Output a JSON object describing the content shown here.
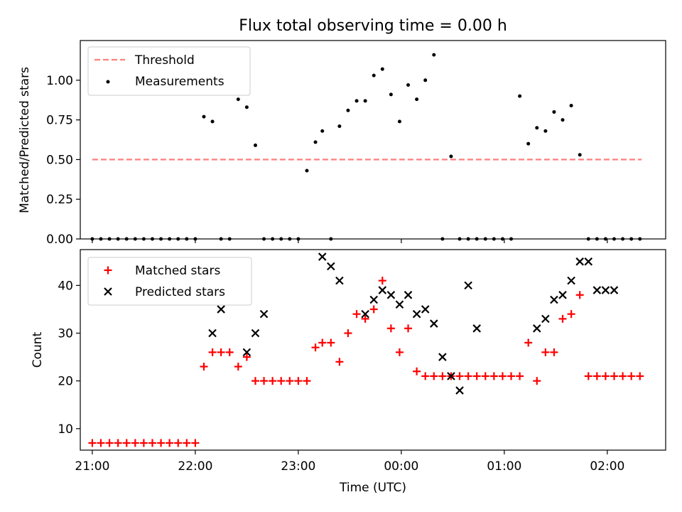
{
  "chart_data": [
    {
      "type": "scatter",
      "title": "Flux total observing time = 0.00 h",
      "xlabel": "",
      "ylabel": "Matched/Predicted stars",
      "xlim": [
        "20:53",
        "02:34"
      ],
      "ylim": [
        0.0,
        1.25
      ],
      "yticks": [
        "0.00",
        "0.25",
        "0.50",
        "0.75",
        "1.00"
      ],
      "xticks": [
        "21:00",
        "22:00",
        "23:00",
        "00:00",
        "01:00",
        "02:00"
      ],
      "legend_position": "top-left",
      "legend": [
        "Threshold",
        "Measurements"
      ],
      "threshold": {
        "value": 0.5,
        "x": [
          "21:00",
          "02:20"
        ],
        "color": "#ff7f7f"
      },
      "measurements": {
        "color": "#000000",
        "x": [
          "21:00",
          "21:05",
          "21:10",
          "21:15",
          "21:20",
          "21:25",
          "21:30",
          "21:35",
          "21:40",
          "21:45",
          "21:50",
          "21:55",
          "22:00",
          "22:05",
          "22:10",
          "22:15",
          "22:20",
          "22:25",
          "22:30",
          "22:35",
          "22:40",
          "22:45",
          "22:50",
          "22:55",
          "23:00",
          "23:05",
          "23:10",
          "23:14",
          "23:19",
          "23:24",
          "23:29",
          "23:34",
          "23:39",
          "23:44",
          "23:49",
          "23:54",
          "23:59",
          "00:04",
          "00:09",
          "00:14",
          "00:19",
          "00:24",
          "00:29",
          "00:34",
          "00:39",
          "00:44",
          "00:49",
          "00:54",
          "00:59",
          "01:04",
          "01:09",
          "01:14",
          "01:19",
          "01:24",
          "01:29",
          "01:34",
          "01:39",
          "01:44",
          "01:49",
          "01:54",
          "01:59",
          "02:04",
          "02:09",
          "02:14",
          "02:19"
        ],
        "y": [
          0.0,
          0.0,
          0.0,
          0.0,
          0.0,
          0.0,
          0.0,
          0.0,
          0.0,
          0.0,
          0.0,
          0.0,
          0.0,
          0.77,
          0.74,
          0.0,
          0.0,
          0.88,
          0.83,
          0.59,
          0.0,
          0.0,
          0.0,
          0.0,
          0.0,
          0.43,
          0.61,
          0.68,
          0.0,
          0.71,
          0.81,
          0.87,
          0.87,
          1.03,
          1.07,
          0.91,
          0.74,
          0.97,
          0.88,
          1.0,
          1.16,
          0.0,
          0.52,
          0.0,
          0.0,
          0.0,
          0.0,
          0.0,
          0.0,
          0.0,
          0.9,
          0.6,
          0.7,
          0.68,
          0.8,
          0.75,
          0.84,
          0.53,
          0.0,
          0.0,
          0.0,
          0.0,
          0.0,
          0.0,
          0.0
        ]
      }
    },
    {
      "type": "scatter",
      "title": "",
      "xlabel": "Time (UTC)",
      "ylabel": "Count",
      "xlim": [
        "20:53",
        "02:34"
      ],
      "ylim": [
        5.5,
        47.5
      ],
      "yticks": [
        "10",
        "20",
        "30",
        "40"
      ],
      "xticks": [
        "21:00",
        "22:00",
        "23:00",
        "00:00",
        "01:00",
        "02:00"
      ],
      "legend_position": "top-left",
      "series": [
        {
          "name": "Matched stars",
          "marker": "plus",
          "color": "#ff0000",
          "x": [
            "21:00",
            "21:05",
            "21:10",
            "21:15",
            "21:20",
            "21:25",
            "21:30",
            "21:35",
            "21:40",
            "21:45",
            "21:50",
            "21:55",
            "22:00",
            "22:05",
            "22:10",
            "22:15",
            "22:20",
            "22:25",
            "22:30",
            "22:35",
            "22:40",
            "22:45",
            "22:50",
            "22:55",
            "23:00",
            "23:05",
            "23:10",
            "23:14",
            "23:19",
            "23:24",
            "23:29",
            "23:34",
            "23:39",
            "23:44",
            "23:49",
            "23:54",
            "23:59",
            "00:04",
            "00:09",
            "00:14",
            "00:19",
            "00:24",
            "00:29",
            "00:34",
            "00:39",
            "00:44",
            "00:49",
            "00:54",
            "00:59",
            "01:04",
            "01:09",
            "01:14",
            "01:19",
            "01:24",
            "01:29",
            "01:34",
            "01:39",
            "01:44",
            "01:49",
            "01:54",
            "01:59",
            "02:04",
            "02:09",
            "02:14",
            "02:19"
          ],
          "y": [
            7,
            7,
            7,
            7,
            7,
            7,
            7,
            7,
            7,
            7,
            7,
            7,
            7,
            23,
            26,
            26,
            26,
            23,
            25,
            20,
            20,
            20,
            20,
            20,
            20,
            20,
            27,
            28,
            28,
            24,
            30,
            34,
            33,
            35,
            41,
            31,
            26,
            31,
            22,
            21,
            21,
            21,
            21,
            21,
            21,
            21,
            21,
            21,
            21,
            21,
            21,
            28,
            20,
            26,
            26,
            33,
            34,
            38,
            21,
            21,
            21,
            21,
            21,
            21,
            21
          ]
        },
        {
          "name": "Predicted stars",
          "marker": "x",
          "color": "#000000",
          "x": [
            "22:10",
            "22:15",
            "22:30",
            "22:35",
            "22:40",
            "23:14",
            "23:19",
            "23:24",
            "23:39",
            "23:44",
            "23:49",
            "23:54",
            "23:59",
            "00:04",
            "00:09",
            "00:14",
            "00:19",
            "00:24",
            "00:29",
            "00:34",
            "00:39",
            "00:44",
            "01:19",
            "01:24",
            "01:29",
            "01:34",
            "01:39",
            "01:44",
            "01:49",
            "01:54",
            "01:59",
            "02:04"
          ],
          "y": [
            30,
            35,
            26,
            30,
            34,
            46,
            44,
            41,
            34,
            37,
            39,
            38,
            36,
            38,
            34,
            35,
            32,
            25,
            21,
            18,
            40,
            31,
            31,
            33,
            37,
            38,
            41,
            45,
            45,
            39,
            39,
            39
          ]
        }
      ]
    }
  ],
  "ui": {
    "legend_threshold": "Threshold",
    "legend_measurements": "Measurements",
    "legend_matched": "Matched stars",
    "legend_predicted": "Predicted stars"
  }
}
